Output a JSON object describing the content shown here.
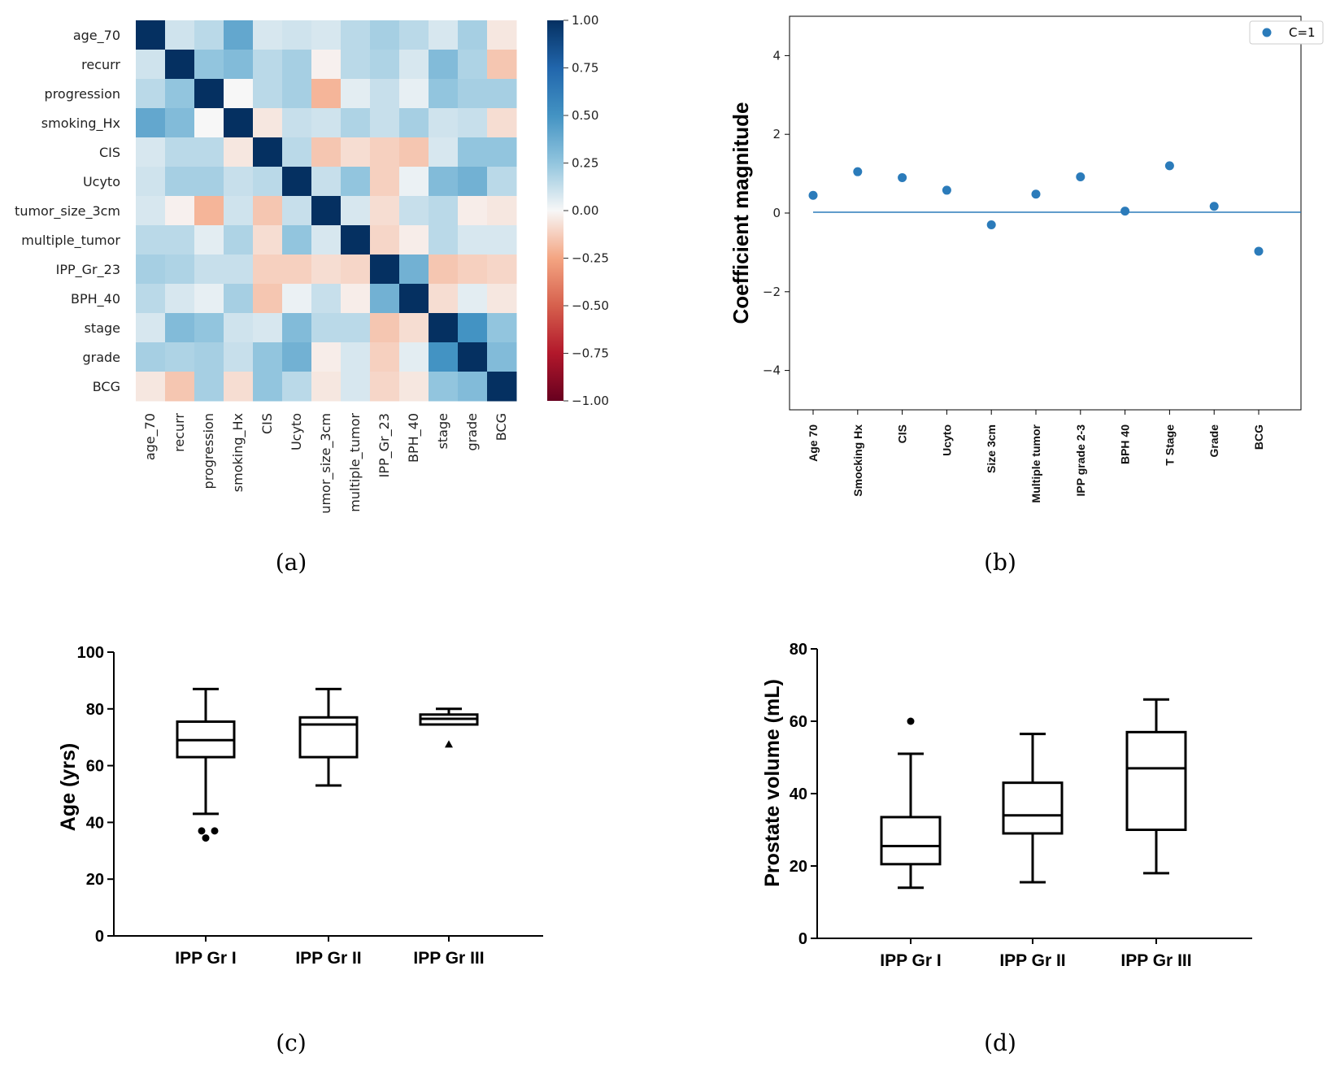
{
  "panel_labels": [
    "(a)",
    "(b)",
    "(c)",
    "(d)"
  ],
  "chart_data": [
    {
      "panel": "(a)",
      "type": "heatmap",
      "row_labels": [
        "age_70",
        "recurr",
        "progression",
        "smoking_Hx",
        "CIS",
        "Ucyto",
        "tumor_size_3cm",
        "multiple_tumor",
        "IPP_Gr_23",
        "BPH_40",
        "stage",
        "grade",
        "BCG"
      ],
      "col_labels": [
        "age_70",
        "recurr",
        "progression",
        "smoking_Hx",
        "CIS",
        "Ucyto",
        "umor_size_3cm",
        "multiple_tumor",
        "IPP_Gr_23",
        "BPH_40",
        "stage",
        "grade",
        "BCG"
      ],
      "values": [
        [
          1.0,
          0.1,
          0.15,
          0.4,
          0.08,
          0.1,
          0.08,
          0.15,
          0.2,
          0.15,
          0.08,
          0.2,
          -0.05
        ],
        [
          0.1,
          1.0,
          0.25,
          0.3,
          0.15,
          0.2,
          -0.02,
          0.15,
          0.18,
          0.08,
          0.3,
          0.18,
          -0.15
        ],
        [
          0.15,
          0.25,
          1.0,
          0.0,
          0.15,
          0.2,
          -0.2,
          0.05,
          0.12,
          0.04,
          0.25,
          0.2,
          0.2
        ],
        [
          0.4,
          0.3,
          0.0,
          1.0,
          -0.05,
          0.12,
          0.1,
          0.18,
          0.12,
          0.2,
          0.1,
          0.12,
          -0.08
        ],
        [
          0.08,
          0.15,
          0.15,
          -0.05,
          1.0,
          0.15,
          -0.15,
          -0.08,
          -0.12,
          -0.15,
          0.08,
          0.25,
          0.25
        ],
        [
          0.1,
          0.2,
          0.2,
          0.12,
          0.15,
          1.0,
          0.12,
          0.25,
          -0.12,
          0.03,
          0.3,
          0.35,
          0.15
        ],
        [
          0.08,
          -0.02,
          -0.2,
          0.1,
          -0.15,
          0.12,
          1.0,
          0.08,
          -0.08,
          0.12,
          0.15,
          -0.03,
          -0.05
        ],
        [
          0.15,
          0.15,
          0.05,
          0.18,
          -0.08,
          0.25,
          0.08,
          1.0,
          -0.1,
          -0.03,
          0.15,
          0.08,
          0.08
        ],
        [
          0.2,
          0.18,
          0.12,
          0.12,
          -0.12,
          -0.12,
          -0.08,
          -0.1,
          1.0,
          0.35,
          -0.15,
          -0.12,
          -0.1
        ],
        [
          0.15,
          0.08,
          0.04,
          0.2,
          -0.15,
          0.03,
          0.12,
          -0.03,
          0.35,
          1.0,
          -0.08,
          0.05,
          -0.05
        ],
        [
          0.08,
          0.3,
          0.25,
          0.1,
          0.08,
          0.3,
          0.15,
          0.15,
          -0.15,
          -0.08,
          1.0,
          0.5,
          0.25
        ],
        [
          0.2,
          0.18,
          0.2,
          0.12,
          0.25,
          0.35,
          -0.03,
          0.08,
          -0.12,
          0.05,
          0.5,
          1.0,
          0.3
        ],
        [
          -0.05,
          -0.15,
          0.2,
          -0.08,
          0.25,
          0.15,
          -0.05,
          0.08,
          -0.1,
          -0.05,
          0.25,
          0.3,
          1.0
        ]
      ],
      "colorbar_ticks": [
        "1.00",
        "0.75",
        "0.50",
        "0.25",
        "0.00",
        "−0.25",
        "−0.50",
        "−0.75",
        "−1.00"
      ],
      "vmin": -1.0,
      "vmax": 1.0,
      "colormap": "RdBu"
    },
    {
      "panel": "(b)",
      "type": "scatter",
      "ylabel": "Coefficient magnitude",
      "categories": [
        "Age 70",
        "Smocking Hx",
        "CIS",
        "Ucyto",
        "Size 3cm",
        "Multiple tumor",
        "IPP grade 2-3",
        "BPH 40",
        "T Stage",
        "Grade",
        "BCG"
      ],
      "values": [
        0.45,
        1.05,
        0.9,
        0.58,
        -0.3,
        0.48,
        0.92,
        0.05,
        1.2,
        0.17,
        -0.97
      ],
      "ylim": [
        -5,
        5
      ],
      "yticks": [
        "4",
        "2",
        "0",
        "−2",
        "−4"
      ],
      "legend": "C=1",
      "legend_position": "top-right",
      "hline": 0,
      "color": "#2b7bba"
    },
    {
      "panel": "(c)",
      "type": "box",
      "ylabel": "Age (yrs)",
      "ylim": [
        0,
        100
      ],
      "yticks": [
        "0",
        "20",
        "40",
        "60",
        "80",
        "100"
      ],
      "categories": [
        "IPP Gr I",
        "IPP Gr II",
        "IPP Gr III"
      ],
      "series": [
        {
          "name": "IPP Gr I",
          "min": 43,
          "q1": 63,
          "median": 69,
          "q3": 75.5,
          "max": 87,
          "outliers": [
            37,
            37,
            34.5
          ],
          "outlier_marker": "dot"
        },
        {
          "name": "IPP Gr II",
          "min": 53,
          "q1": 63,
          "median": 74.5,
          "q3": 77,
          "max": 87,
          "outliers": [],
          "outlier_marker": "dot"
        },
        {
          "name": "IPP Gr III",
          "min": 74.5,
          "q1": 74.5,
          "median": 76.5,
          "q3": 78,
          "max": 80,
          "outliers": [
            67.5
          ],
          "outlier_marker": "triangle"
        }
      ]
    },
    {
      "panel": "(d)",
      "type": "box",
      "ylabel": "Prostate volume (mL)",
      "ylim": [
        0,
        80
      ],
      "yticks": [
        "0",
        "20",
        "40",
        "60",
        "80"
      ],
      "categories": [
        "IPP Gr I",
        "IPP Gr II",
        "IPP Gr III"
      ],
      "series": [
        {
          "name": "IPP Gr I",
          "min": 14,
          "q1": 20.5,
          "median": 25.5,
          "q3": 33.5,
          "max": 51,
          "outliers": [
            60
          ],
          "outlier_marker": "dot"
        },
        {
          "name": "IPP Gr II",
          "min": 15.5,
          "q1": 29,
          "median": 34,
          "q3": 43,
          "max": 56.5,
          "outliers": [],
          "outlier_marker": "dot"
        },
        {
          "name": "IPP Gr III",
          "min": 18,
          "q1": 30,
          "median": 47,
          "q3": 57,
          "max": 66,
          "outliers": [],
          "outlier_marker": "dot"
        }
      ]
    }
  ]
}
